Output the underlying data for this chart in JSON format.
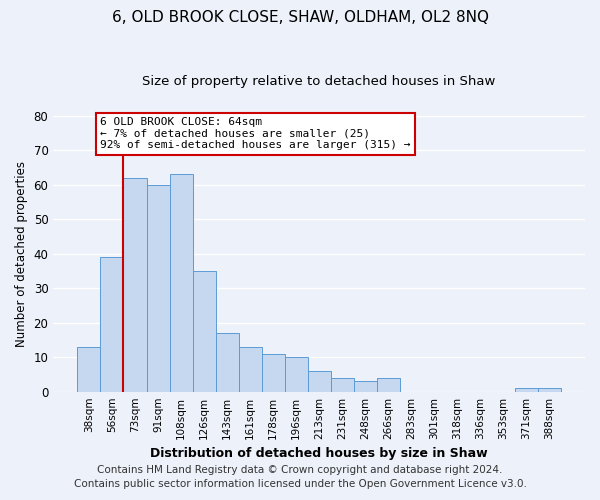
{
  "title": "6, OLD BROOK CLOSE, SHAW, OLDHAM, OL2 8NQ",
  "subtitle": "Size of property relative to detached houses in Shaw",
  "xlabel": "Distribution of detached houses by size in Shaw",
  "ylabel": "Number of detached properties",
  "bar_labels": [
    "38sqm",
    "56sqm",
    "73sqm",
    "91sqm",
    "108sqm",
    "126sqm",
    "143sqm",
    "161sqm",
    "178sqm",
    "196sqm",
    "213sqm",
    "231sqm",
    "248sqm",
    "266sqm",
    "283sqm",
    "301sqm",
    "318sqm",
    "336sqm",
    "353sqm",
    "371sqm",
    "388sqm"
  ],
  "bar_heights": [
    13,
    39,
    62,
    60,
    63,
    35,
    17,
    13,
    11,
    10,
    6,
    4,
    3,
    4,
    0,
    0,
    0,
    0,
    0,
    1,
    1
  ],
  "bar_color": "#c5d8f0",
  "bar_edge_color": "#5b9bd5",
  "ylim": [
    0,
    80
  ],
  "yticks": [
    0,
    10,
    20,
    30,
    40,
    50,
    60,
    70,
    80
  ],
  "vline_x": 1.5,
  "vline_color": "#cc0000",
  "annotation_text": "6 OLD BROOK CLOSE: 64sqm\n← 7% of detached houses are smaller (25)\n92% of semi-detached houses are larger (315) →",
  "annotation_box_color": "#ffffff",
  "annotation_box_edge_color": "#cc0000",
  "footer_line1": "Contains HM Land Registry data © Crown copyright and database right 2024.",
  "footer_line2": "Contains public sector information licensed under the Open Government Licence v3.0.",
  "background_color": "#edf1f9",
  "plot_background_color": "#edf1f9",
  "grid_color": "#ffffff",
  "title_fontsize": 11,
  "subtitle_fontsize": 9.5,
  "footer_fontsize": 7.5
}
